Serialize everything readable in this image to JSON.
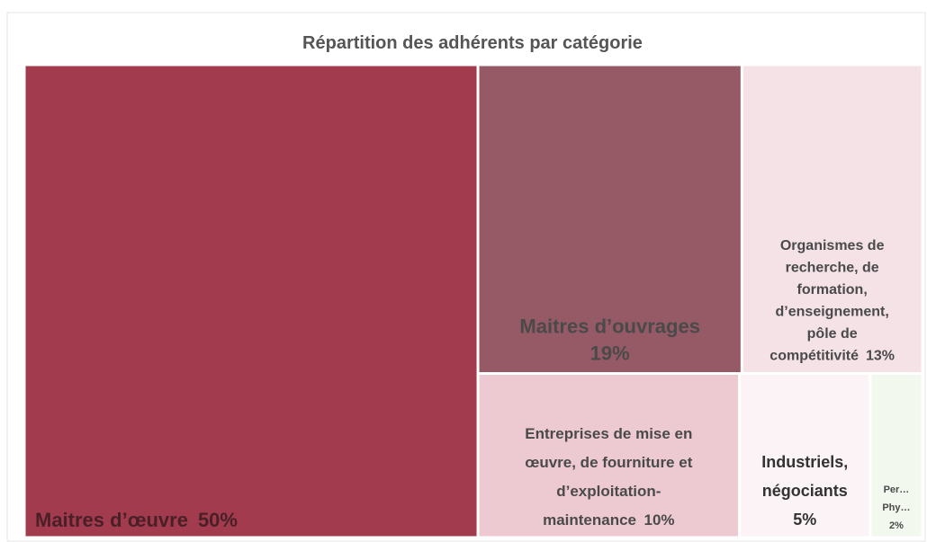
{
  "chart_data": {
    "type": "treemap",
    "title": "Répartition des adhérents par catégorie",
    "categories": [
      [
        "Maitres d’œuvre"
      ],
      [
        "Maitres d’ouvrages"
      ],
      [
        "Organismes de",
        "recherche, de",
        "formation,",
        "d’enseignement,",
        "pôle de",
        "compétitivité"
      ],
      [
        "Entreprises de mise en",
        "œuvre, de fourniture et",
        "d’exploitation-",
        "maintenance"
      ],
      [
        "Industriels,",
        "négociants"
      ],
      [
        "Per…",
        "Phy…"
      ]
    ],
    "values": [
      50,
      19,
      13,
      10,
      5,
      2
    ],
    "value_labels": [
      "50%",
      "19%",
      "13%",
      "10%",
      "5%",
      "2%"
    ],
    "colors": [
      "#a33b4e",
      "#965966",
      "#f4e2e7",
      "#edcad1",
      "#fbf3f5",
      "#f3f8ee"
    ]
  }
}
